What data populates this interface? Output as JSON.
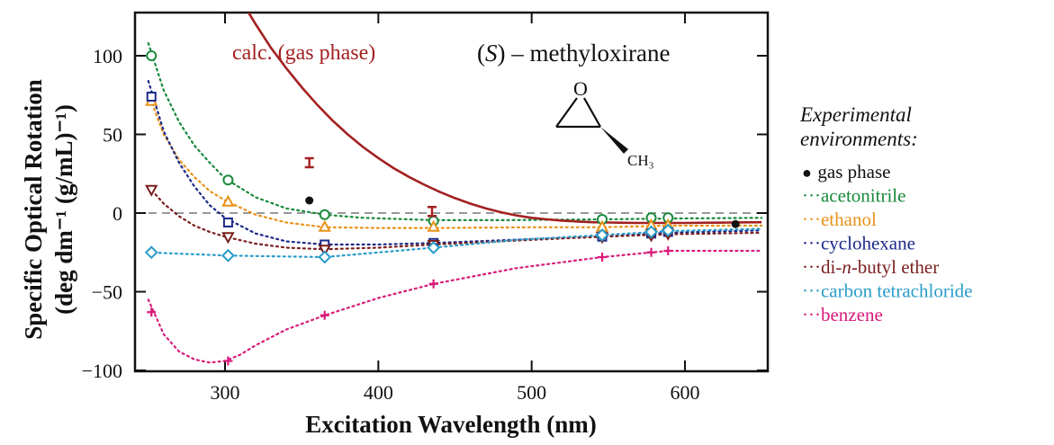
{
  "chart_data": {
    "type": "scatter",
    "xlabel": "Excitation Wavelength (nm)",
    "ylabel_line1": "Specific Optical Rotation",
    "ylabel_line2": "(deg dm⁻¹ (g/mL)⁻¹)",
    "xlim": [
      245,
      655
    ],
    "ylim": [
      -105,
      125
    ],
    "xticks": [
      300,
      400,
      500,
      600
    ],
    "yticks": [
      100,
      50,
      0,
      -50,
      -100
    ],
    "ytick_labels": [
      "100",
      "50",
      "0",
      "−50",
      "−100"
    ],
    "zero_line": true,
    "legend_title_1": "Experimental",
    "legend_title_2": "environments:",
    "legend_placement": "right",
    "title": "(S) – methyloxirane",
    "title_italic_part": "S",
    "molecule_o": "O",
    "molecule_ch3": "CH₃",
    "calc": {
      "label": "calc. (gas phase)",
      "color": "#a32020",
      "curve_x": [
        250,
        260,
        270,
        280,
        290,
        300,
        310,
        320,
        330,
        340,
        350,
        360,
        370,
        380,
        390,
        400,
        410,
        420,
        430,
        440,
        450,
        460,
        470,
        480,
        490,
        500,
        510,
        520,
        530,
        540,
        550,
        560,
        570,
        580,
        590,
        600,
        610,
        620,
        630,
        640,
        650
      ],
      "curve_y": [
        265,
        240,
        215,
        192,
        172,
        153,
        136,
        120,
        105,
        92,
        80,
        69,
        59,
        50,
        42,
        35,
        28.5,
        23,
        18,
        13.5,
        9.5,
        6,
        3,
        0.5,
        -1.5,
        -3,
        -4,
        -4.8,
        -5.4,
        -5.8,
        -6,
        -6.2,
        -6.3,
        -6.3,
        -6.3,
        -6.3,
        -6.2,
        -6.1,
        -6,
        -5.9,
        -5.8
      ],
      "markers": [
        {
          "x": 355,
          "y": 32
        },
        {
          "x": 435,
          "y": 1
        }
      ]
    },
    "series": [
      {
        "name": "gas phase",
        "color": "#111111",
        "marker": "dot",
        "points": [
          {
            "x": 355,
            "y": 8
          },
          {
            "x": 633,
            "y": -7
          }
        ]
      },
      {
        "name": "acetonitrile",
        "color": "#1a8a3c",
        "marker": "circle",
        "points": [
          {
            "x": 252,
            "y": 100
          },
          {
            "x": 302,
            "y": 21
          },
          {
            "x": 365,
            "y": -1
          },
          {
            "x": 436,
            "y": -5
          },
          {
            "x": 546,
            "y": -4
          },
          {
            "x": 578,
            "y": -3
          },
          {
            "x": 589,
            "y": -3
          }
        ],
        "curve_x": [
          250,
          260,
          270,
          280,
          290,
          300,
          320,
          340,
          365,
          390,
          436,
          480,
          546,
          589,
          650
        ],
        "curve_y": [
          108,
          78,
          58,
          43,
          32,
          22,
          10,
          3,
          -1,
          -3,
          -4.5,
          -4.5,
          -4,
          -3.5,
          -3
        ]
      },
      {
        "name": "ethanol",
        "color": "#e8921a",
        "marker": "triangle",
        "points": [
          {
            "x": 252,
            "y": 71
          },
          {
            "x": 302,
            "y": 7
          },
          {
            "x": 365,
            "y": -9
          },
          {
            "x": 436,
            "y": -9
          },
          {
            "x": 546,
            "y": -9
          },
          {
            "x": 578,
            "y": -8
          },
          {
            "x": 589,
            "y": -8
          }
        ],
        "curve_x": [
          250,
          260,
          270,
          280,
          290,
          300,
          320,
          340,
          365,
          400,
          436,
          500,
          546,
          589,
          650
        ],
        "curve_y": [
          76,
          50,
          34,
          23,
          14,
          8,
          -1,
          -6,
          -9,
          -9.5,
          -9.5,
          -9,
          -9,
          -8,
          -8
        ]
      },
      {
        "name": "cyclohexane",
        "color": "#1d2a8a",
        "marker": "square",
        "points": [
          {
            "x": 252,
            "y": 74
          },
          {
            "x": 302,
            "y": -6
          },
          {
            "x": 365,
            "y": -20
          },
          {
            "x": 436,
            "y": -19
          },
          {
            "x": 546,
            "y": -15
          },
          {
            "x": 578,
            "y": -13
          },
          {
            "x": 589,
            "y": -12
          }
        ],
        "curve_x": [
          250,
          260,
          270,
          280,
          290,
          300,
          320,
          340,
          365,
          400,
          436,
          500,
          546,
          589,
          650
        ],
        "curve_y": [
          84,
          52,
          32,
          17,
          5,
          -3,
          -13,
          -18,
          -20,
          -20,
          -19,
          -16.5,
          -15,
          -12.5,
          -11
        ]
      },
      {
        "name": "di-n-butyl ether",
        "name_prefix": "di-",
        "name_italic": "n",
        "name_suffix": "-butyl ether",
        "color": "#7a1f1f",
        "marker": "invtriangle",
        "points": [
          {
            "x": 252,
            "y": 15
          },
          {
            "x": 302,
            "y": -15
          },
          {
            "x": 365,
            "y": -23
          },
          {
            "x": 436,
            "y": -20
          },
          {
            "x": 546,
            "y": -15
          },
          {
            "x": 578,
            "y": -14
          },
          {
            "x": 589,
            "y": -13
          }
        ],
        "curve_x": [
          250,
          260,
          270,
          280,
          290,
          300,
          320,
          340,
          365,
          400,
          436,
          500,
          546,
          589,
          650
        ],
        "curve_y": [
          17,
          6,
          -2,
          -8,
          -12,
          -15,
          -19.5,
          -22,
          -23,
          -22,
          -20,
          -17,
          -15,
          -13.5,
          -12.5
        ]
      },
      {
        "name": "carbon tetrachloride",
        "color": "#2a9cc8",
        "marker": "diamond",
        "points": [
          {
            "x": 252,
            "y": -25
          },
          {
            "x": 302,
            "y": -27
          },
          {
            "x": 365,
            "y": -28
          },
          {
            "x": 436,
            "y": -22
          },
          {
            "x": 546,
            "y": -14
          },
          {
            "x": 578,
            "y": -12
          },
          {
            "x": 589,
            "y": -11
          }
        ],
        "curve_x": [
          250,
          275,
          302,
          330,
          365,
          400,
          436,
          490,
          546,
          589,
          650
        ],
        "curve_y": [
          -25,
          -26,
          -27,
          -27.5,
          -28,
          -25,
          -22,
          -17,
          -14,
          -11.5,
          -10
        ]
      },
      {
        "name": "benzene",
        "color": "#d81b7a",
        "marker": "plus",
        "points": [
          {
            "x": 252,
            "y": -63
          },
          {
            "x": 302,
            "y": -94
          },
          {
            "x": 365,
            "y": -65
          },
          {
            "x": 436,
            "y": -45
          },
          {
            "x": 546,
            "y": -28
          },
          {
            "x": 578,
            "y": -25
          },
          {
            "x": 589,
            "y": -24
          }
        ],
        "curve_x": [
          250,
          260,
          270,
          280,
          290,
          300,
          310,
          320,
          340,
          365,
          400,
          436,
          490,
          546,
          589,
          650
        ],
        "curve_y": [
          -55,
          -77,
          -88,
          -93,
          -95,
          -94,
          -90,
          -84,
          -74,
          -65,
          -54,
          -45,
          -35,
          -28,
          -24,
          -24
        ]
      }
    ]
  }
}
